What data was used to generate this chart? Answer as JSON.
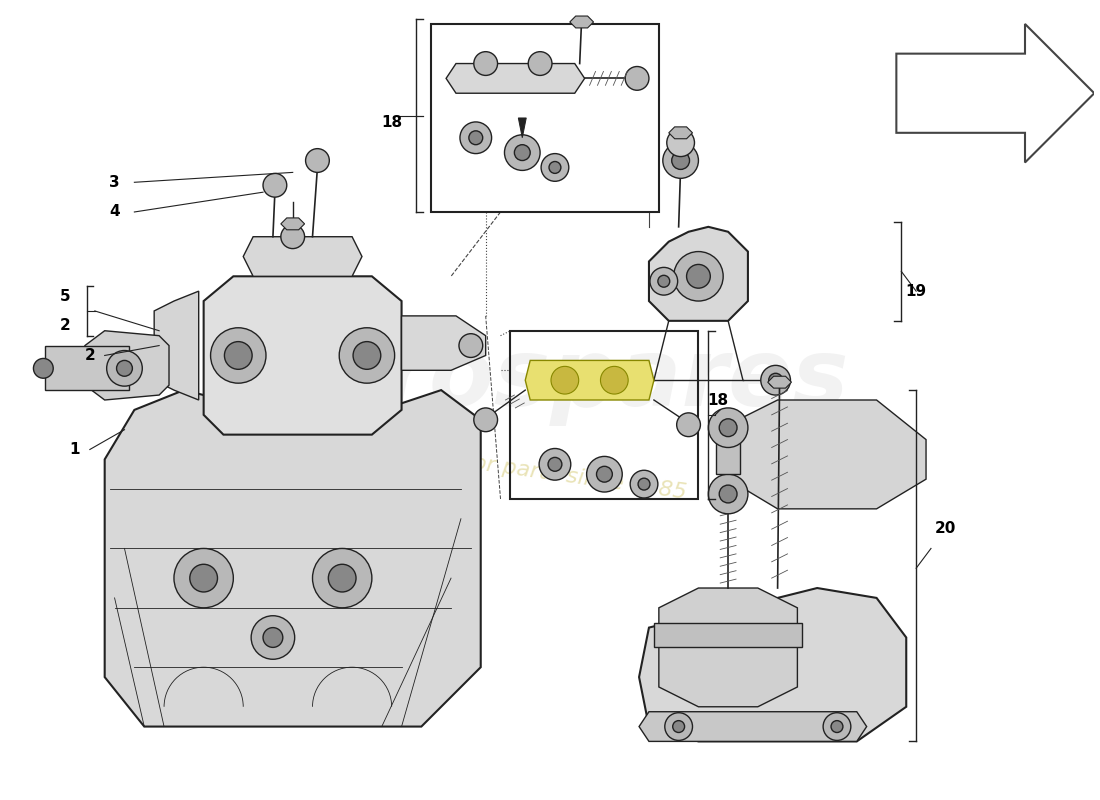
{
  "bg_color": "#ffffff",
  "line_color": "#222222",
  "light_gray": "#d8d8d8",
  "mid_gray": "#b8b8b8",
  "dark_gray": "#888888",
  "yellow_part": "#e8e070",
  "watermark_gray": "#cccccc",
  "watermark_yellow": "#d4c870",
  "lw_main": 1.0,
  "lw_thick": 1.5,
  "lw_thin": 0.6
}
